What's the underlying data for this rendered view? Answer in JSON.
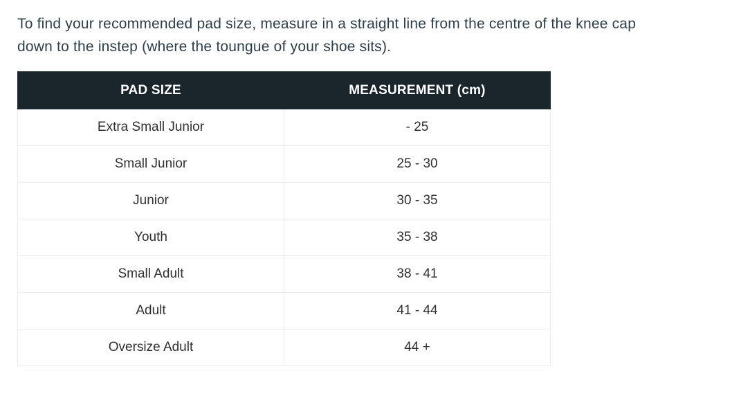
{
  "intro": {
    "text": "To find your recommended pad size, measure in a straight line from the centre of the knee cap\ndown to the instep (where the toungue of your shoe sits)."
  },
  "table": {
    "headers": [
      "PAD SIZE",
      "MEASUREMENT (cm)"
    ],
    "rows": [
      {
        "size": "Extra Small Junior",
        "measurement": "- 25"
      },
      {
        "size": "Small Junior",
        "measurement": "25 - 30"
      },
      {
        "size": "Junior",
        "measurement": "30 - 35"
      },
      {
        "size": "Youth",
        "measurement": "35 - 38"
      },
      {
        "size": "Small Adult",
        "measurement": "38 - 41"
      },
      {
        "size": "Adult",
        "measurement": "41 - 44"
      },
      {
        "size": "Oversize Adult",
        "measurement": "44 +"
      }
    ]
  },
  "colors": {
    "header_bg": "#1b252c",
    "header_text": "#ffffff",
    "body_text": "#303030",
    "intro_text": "#2e3e49",
    "row_border": "#ececec"
  }
}
